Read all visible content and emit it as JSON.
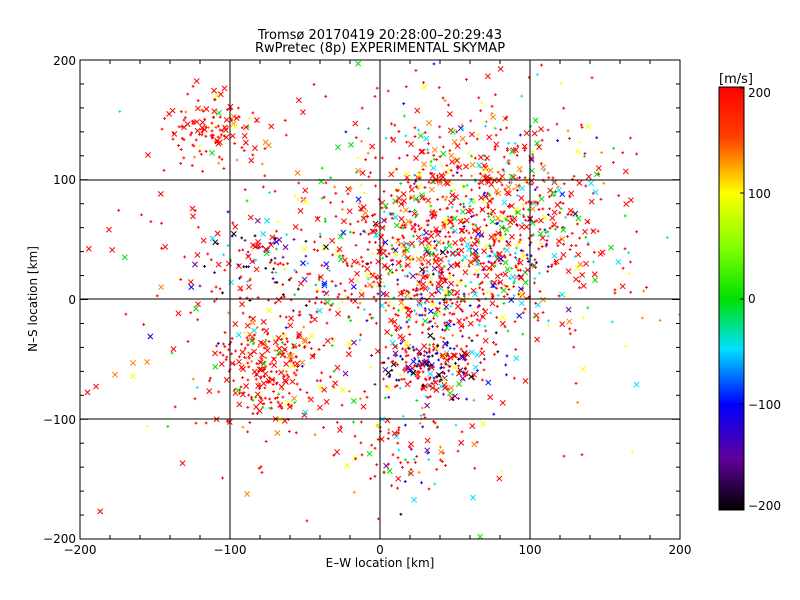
{
  "chart_data": {
    "type": "scatter",
    "title": "Tromsø 20170419 20:28:00–20:29:43",
    "subtitle": "RwPretec (8p) EXPERIMENTAL SKYMAP",
    "xlabel": "E–W location [km]",
    "ylabel": "N–S location [km]",
    "xlim": [
      -200,
      200
    ],
    "ylim": [
      -200,
      200
    ],
    "xticks": [
      "−200",
      "−100",
      "0",
      "100",
      "200"
    ],
    "yticks": [
      "200",
      "100",
      "0",
      "−100",
      "−200"
    ],
    "grid": true,
    "markers": [
      "plus",
      "cross"
    ],
    "colorbar": {
      "label": "[m/s]",
      "min": -200,
      "max": 200,
      "ticks": [
        "200",
        "100",
        "0",
        "−100",
        "−200"
      ],
      "colormap": "rainbow (black→purple→blue→cyan→green→yellow→orange→red)"
    },
    "colors": {
      "red": "#ff0000",
      "orange": "#ff8000",
      "yellow": "#ffff00",
      "green": "#00e000",
      "cyan": "#00e0ff",
      "blue": "#0000ff",
      "purple": "#7000a0",
      "black": "#000000"
    },
    "clusters": [
      {
        "x": 60,
        "y": 75,
        "sx": 45,
        "sy": 45,
        "n": 900,
        "velocity": 80
      },
      {
        "x": 40,
        "y": 15,
        "sx": 40,
        "sy": 30,
        "n": 450,
        "velocity": 20
      },
      {
        "x": 35,
        "y": -55,
        "sx": 18,
        "sy": 12,
        "n": 220,
        "velocity": -130
      },
      {
        "x": -75,
        "y": -55,
        "sx": 18,
        "sy": 25,
        "n": 280,
        "velocity": 180
      },
      {
        "x": -110,
        "y": 140,
        "sx": 15,
        "sy": 15,
        "n": 130,
        "velocity": 200
      },
      {
        "x": -85,
        "y": 35,
        "sx": 25,
        "sy": 20,
        "n": 120,
        "velocity": -120
      },
      {
        "x": 20,
        "y": -120,
        "sx": 25,
        "sy": 25,
        "n": 100,
        "velocity": 40
      },
      {
        "x": 0,
        "y": 0,
        "sx": 110,
        "sy": 90,
        "n": 350,
        "velocity": 150
      }
    ]
  }
}
